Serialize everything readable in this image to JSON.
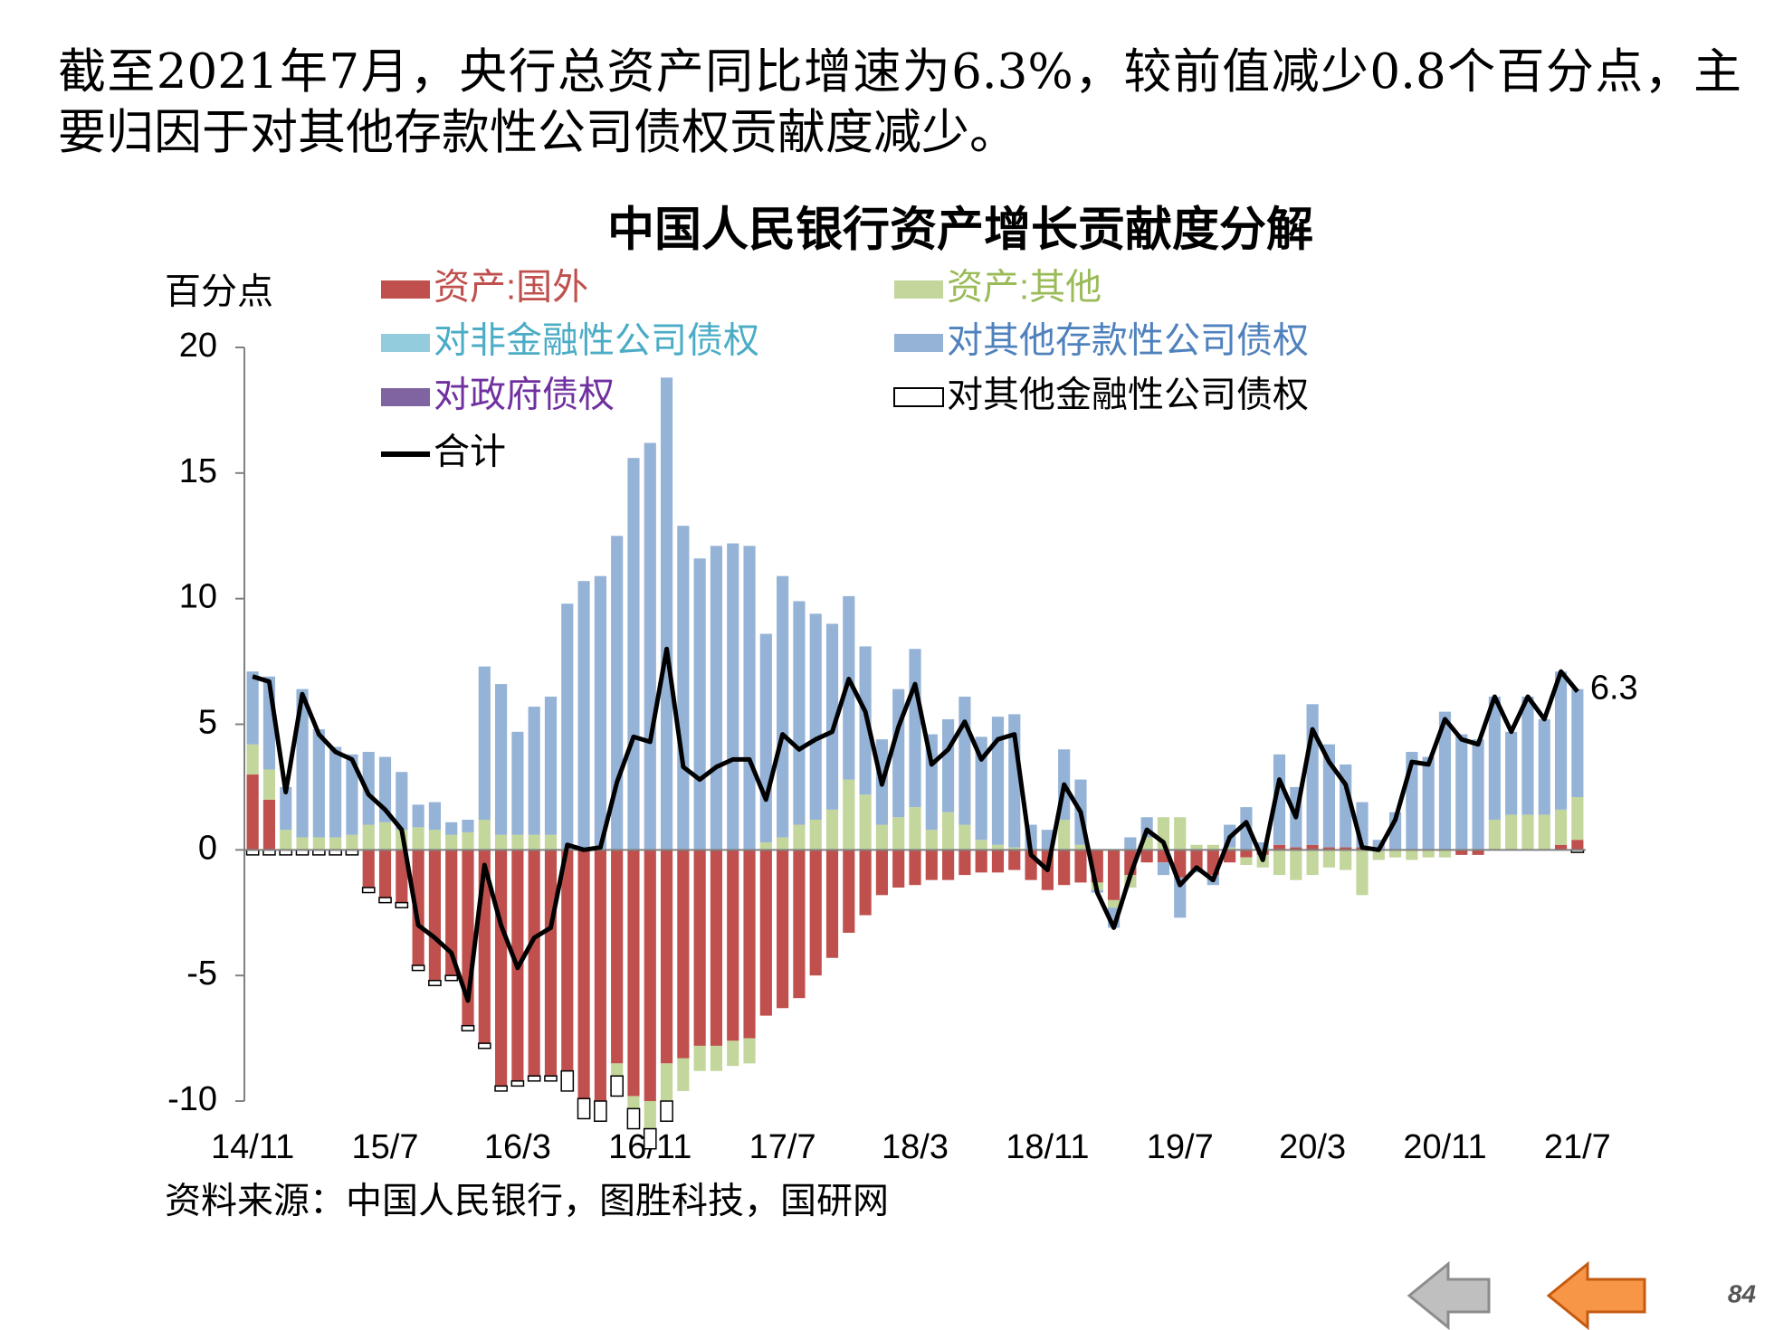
{
  "heading": "截至2021年7月，央行总资产同比增速为6.3%，较前值减少0.8个百分点，主要归因于对其他存款性公司债权贡献度减少。",
  "source": "资料来源：中国人民银行，图胜科技，国研网",
  "page_number": "84",
  "chart_data": {
    "type": "stacked_bar_line",
    "title": "中国人民银行资产增长贡献度分解",
    "y_label": "百分点",
    "categories": [
      "14/11",
      null,
      null,
      null,
      null,
      null,
      null,
      null,
      "15/7",
      null,
      null,
      null,
      null,
      null,
      null,
      null,
      "16/3",
      null,
      null,
      null,
      null,
      null,
      null,
      null,
      "16/11",
      null,
      null,
      null,
      null,
      null,
      null,
      null,
      "17/7",
      null,
      null,
      null,
      null,
      null,
      null,
      null,
      "18/3",
      null,
      null,
      null,
      null,
      null,
      null,
      null,
      "18/11",
      null,
      null,
      null,
      null,
      null,
      null,
      null,
      "19/7",
      null,
      null,
      null,
      null,
      null,
      null,
      null,
      "20/3",
      null,
      null,
      null,
      null,
      null,
      null,
      null,
      "20/11",
      null,
      null,
      null,
      null,
      null,
      null,
      null,
      "21/7"
    ],
    "ylim": [
      -10,
      20
    ],
    "yticks": [
      -10,
      -5,
      0,
      5,
      10,
      15,
      20
    ],
    "series": [
      {
        "name": "资产:国外",
        "color": "#c0504d",
        "label_color": "#c0504d",
        "kind": "bar",
        "values": [
          3.0,
          2.0,
          0.0,
          0.0,
          0.0,
          0.0,
          0.0,
          -1.5,
          -1.9,
          -2.1,
          -4.6,
          -5.2,
          -5.0,
          -7.0,
          -7.7,
          -9.4,
          -9.2,
          -9.0,
          -9.0,
          -8.8,
          -9.9,
          -10.0,
          -8.5,
          -9.8,
          -10.0,
          -8.5,
          -8.3,
          -7.8,
          -7.8,
          -7.6,
          -7.5,
          -6.6,
          -6.3,
          -5.9,
          -5.0,
          -4.3,
          -3.3,
          -2.6,
          -1.8,
          -1.5,
          -1.4,
          -1.2,
          -1.2,
          -1.0,
          -0.9,
          -0.9,
          -0.8,
          -1.2,
          -1.6,
          -1.4,
          -1.3,
          -1.3,
          -2.0,
          -1.0,
          -0.5,
          -0.5,
          -1.1,
          -0.8,
          -1.0,
          -0.5,
          -0.3,
          -0.2,
          0.2,
          0.1,
          0.2,
          0.1,
          0.1,
          0.1,
          0.0,
          0.0,
          0.0,
          0.0,
          0.0,
          -0.2,
          -0.2,
          0.0,
          0.0,
          0.0,
          0.0,
          0.2,
          0.4
        ]
      },
      {
        "name": "资产:其他",
        "color": "#c3d69b",
        "label_color": "#9bbb59",
        "kind": "bar",
        "values": [
          1.2,
          1.2,
          0.8,
          0.5,
          0.5,
          0.5,
          0.6,
          1.0,
          1.1,
          0.8,
          0.9,
          0.8,
          0.6,
          0.7,
          1.2,
          0.6,
          0.6,
          0.6,
          0.6,
          0,
          0,
          0,
          -0.5,
          -0.5,
          -1.1,
          -1.5,
          -1.3,
          -1.0,
          -1.0,
          -1.0,
          -1.0,
          0.3,
          0.5,
          1.0,
          1.2,
          1.6,
          2.8,
          2.2,
          1.0,
          1.3,
          1.7,
          0.8,
          1.5,
          1.0,
          0.4,
          0.2,
          0.1,
          0.0,
          0.0,
          1.2,
          0.2,
          -0.3,
          -0.3,
          -0.5,
          0.5,
          1.3,
          1.3,
          0.2,
          0.2,
          0.1,
          -0.3,
          -0.5,
          -1.0,
          -1.2,
          -1.0,
          -0.7,
          -0.8,
          -1.8,
          -0.4,
          -0.3,
          -0.4,
          -0.3,
          -0.3,
          0.0,
          0.0,
          1.2,
          1.4,
          1.4,
          1.4,
          1.4,
          1.7
        ]
      },
      {
        "name": "对非金融性公司债权",
        "color": "#93cddd",
        "label_color": "#4bacc6",
        "kind": "bar",
        "values": [
          0,
          0,
          0,
          0,
          0,
          0,
          0,
          0,
          0,
          0,
          0,
          0,
          0,
          0,
          0,
          0,
          0,
          0,
          0,
          0,
          0,
          0,
          0,
          0,
          0,
          0,
          0,
          0,
          0,
          0,
          0,
          0,
          0,
          0,
          0,
          0,
          0,
          0,
          0,
          0,
          0,
          0,
          0,
          0,
          0,
          0,
          0,
          0,
          0,
          0,
          0,
          0,
          0,
          0,
          0,
          0,
          0,
          0,
          0,
          0,
          0,
          0,
          0,
          0,
          0,
          0,
          0,
          0,
          0,
          0,
          0,
          0,
          0,
          0,
          0,
          0,
          0,
          0,
          0,
          0,
          0
        ]
      },
      {
        "name": "对其他存款性公司债权",
        "color": "#95b3d7",
        "label_color": "#4f81bd",
        "kind": "bar",
        "values": [
          2.9,
          3.7,
          1.7,
          5.9,
          4.3,
          3.6,
          3.2,
          2.9,
          2.6,
          2.3,
          0.9,
          1.1,
          0.5,
          0.5,
          6.1,
          6.0,
          4.1,
          5.1,
          5.5,
          9.8,
          10.7,
          10.9,
          12.5,
          15.6,
          16.2,
          18.8,
          12.9,
          11.6,
          12.1,
          12.2,
          12.1,
          8.3,
          10.4,
          8.9,
          8.2,
          7.4,
          7.3,
          5.9,
          3.4,
          5.1,
          6.3,
          3.8,
          3.7,
          5.1,
          4.1,
          5.1,
          5.3,
          1.0,
          0.8,
          2.8,
          2.6,
          -0.1,
          -0.8,
          0.5,
          0.8,
          -0.5,
          -1.6,
          -0.1,
          -0.4,
          0.9,
          1.7,
          0.3,
          3.6,
          2.4,
          5.6,
          4.1,
          3.3,
          1.8,
          0.4,
          1.5,
          3.9,
          3.7,
          5.5,
          4.6,
          4.4,
          4.9,
          3.3,
          4.7,
          3.8,
          5.5,
          4.3
        ]
      },
      {
        "name": "对政府债权",
        "color": "#8064a2",
        "label_color": "#7030a0",
        "kind": "bar",
        "values": [
          0,
          0,
          0,
          0,
          0,
          0,
          0,
          0,
          0,
          0,
          0,
          0,
          0,
          0,
          0,
          0,
          0,
          0,
          0,
          0,
          0,
          0,
          0,
          0,
          0,
          0,
          0,
          0,
          0,
          0,
          0,
          0,
          0,
          0,
          0,
          0,
          0,
          0,
          0,
          0,
          0,
          0,
          0,
          0,
          0,
          0,
          0,
          0,
          0,
          0,
          0,
          0,
          0,
          0,
          0,
          0,
          0,
          0,
          0,
          0,
          0,
          0,
          0,
          0,
          0,
          0,
          0,
          0,
          0,
          0,
          0,
          0,
          0,
          0,
          0,
          0,
          0,
          0,
          0,
          0,
          0
        ]
      },
      {
        "name": "对其他金融性公司债权",
        "color": "#ffffff",
        "label_color": "#000000",
        "kind": "bar",
        "values": [
          -0.2,
          -0.2,
          -0.2,
          -0.2,
          -0.2,
          -0.2,
          -0.2,
          -0.2,
          -0.2,
          -0.2,
          -0.2,
          -0.2,
          -0.2,
          -0.2,
          -0.2,
          -0.2,
          -0.2,
          -0.2,
          -0.2,
          -0.8,
          -0.8,
          -0.8,
          -0.8,
          -0.8,
          -0.8,
          -0.8,
          0,
          0,
          0,
          0,
          0,
          0,
          0,
          0,
          0,
          0,
          0,
          0,
          0,
          0,
          0,
          0,
          0,
          0,
          0,
          0,
          0,
          0,
          0,
          0,
          0,
          0,
          0,
          0,
          0,
          0,
          0,
          0,
          0,
          0,
          0,
          0,
          0,
          0,
          0,
          0,
          0,
          0,
          0,
          0,
          0,
          0,
          0,
          0,
          0,
          0,
          0,
          0,
          0,
          0,
          -0.1
        ]
      },
      {
        "name": "合计",
        "color": "#000000",
        "label_color": "#000000",
        "kind": "line",
        "values": [
          6.9,
          6.7,
          2.3,
          6.2,
          4.6,
          3.9,
          3.6,
          2.2,
          1.6,
          0.8,
          -3.0,
          -3.5,
          -4.1,
          -6.0,
          -0.6,
          -3.0,
          -4.7,
          -3.5,
          -3.1,
          0.2,
          0.0,
          0.1,
          2.7,
          4.5,
          4.3,
          8.0,
          3.3,
          2.8,
          3.3,
          3.6,
          3.6,
          2.0,
          4.6,
          4.0,
          4.4,
          4.7,
          6.8,
          5.5,
          2.6,
          4.9,
          6.6,
          3.4,
          4.0,
          5.1,
          3.6,
          4.4,
          4.6,
          -0.2,
          -0.8,
          2.6,
          1.5,
          -1.7,
          -3.1,
          -1.0,
          0.8,
          0.3,
          -1.4,
          -0.7,
          -1.2,
          0.5,
          1.1,
          -0.4,
          2.8,
          1.3,
          4.8,
          3.5,
          2.6,
          0.1,
          0.0,
          1.2,
          3.5,
          3.4,
          5.2,
          4.4,
          4.2,
          6.1,
          4.7,
          6.1,
          5.2,
          7.1,
          6.3
        ]
      }
    ]
  }
}
